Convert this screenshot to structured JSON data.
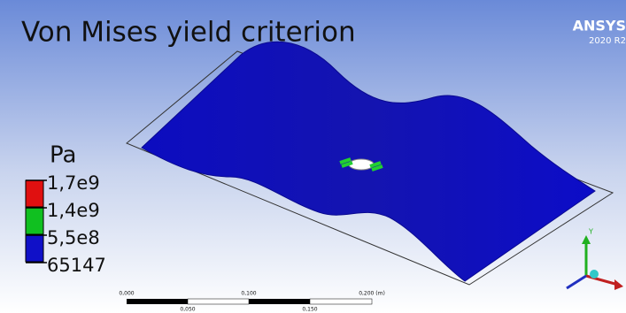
{
  "header": {
    "title": "Von Mises yield criterion",
    "logo": "ANSYS",
    "version": "2020 R2"
  },
  "legend": {
    "unit": "Pa",
    "labels": [
      "1,7e9",
      "1,4e9",
      "5,5e8",
      "65147"
    ],
    "colors": [
      "#e01010",
      "#10c020",
      "#1010c8"
    ]
  },
  "scale_bar": {
    "top_labels": [
      "0,000",
      "0,100",
      "0,200 (m)"
    ],
    "bottom_labels": [
      "0,050",
      "0,150"
    ]
  },
  "triad": {
    "y_label": "Y"
  }
}
